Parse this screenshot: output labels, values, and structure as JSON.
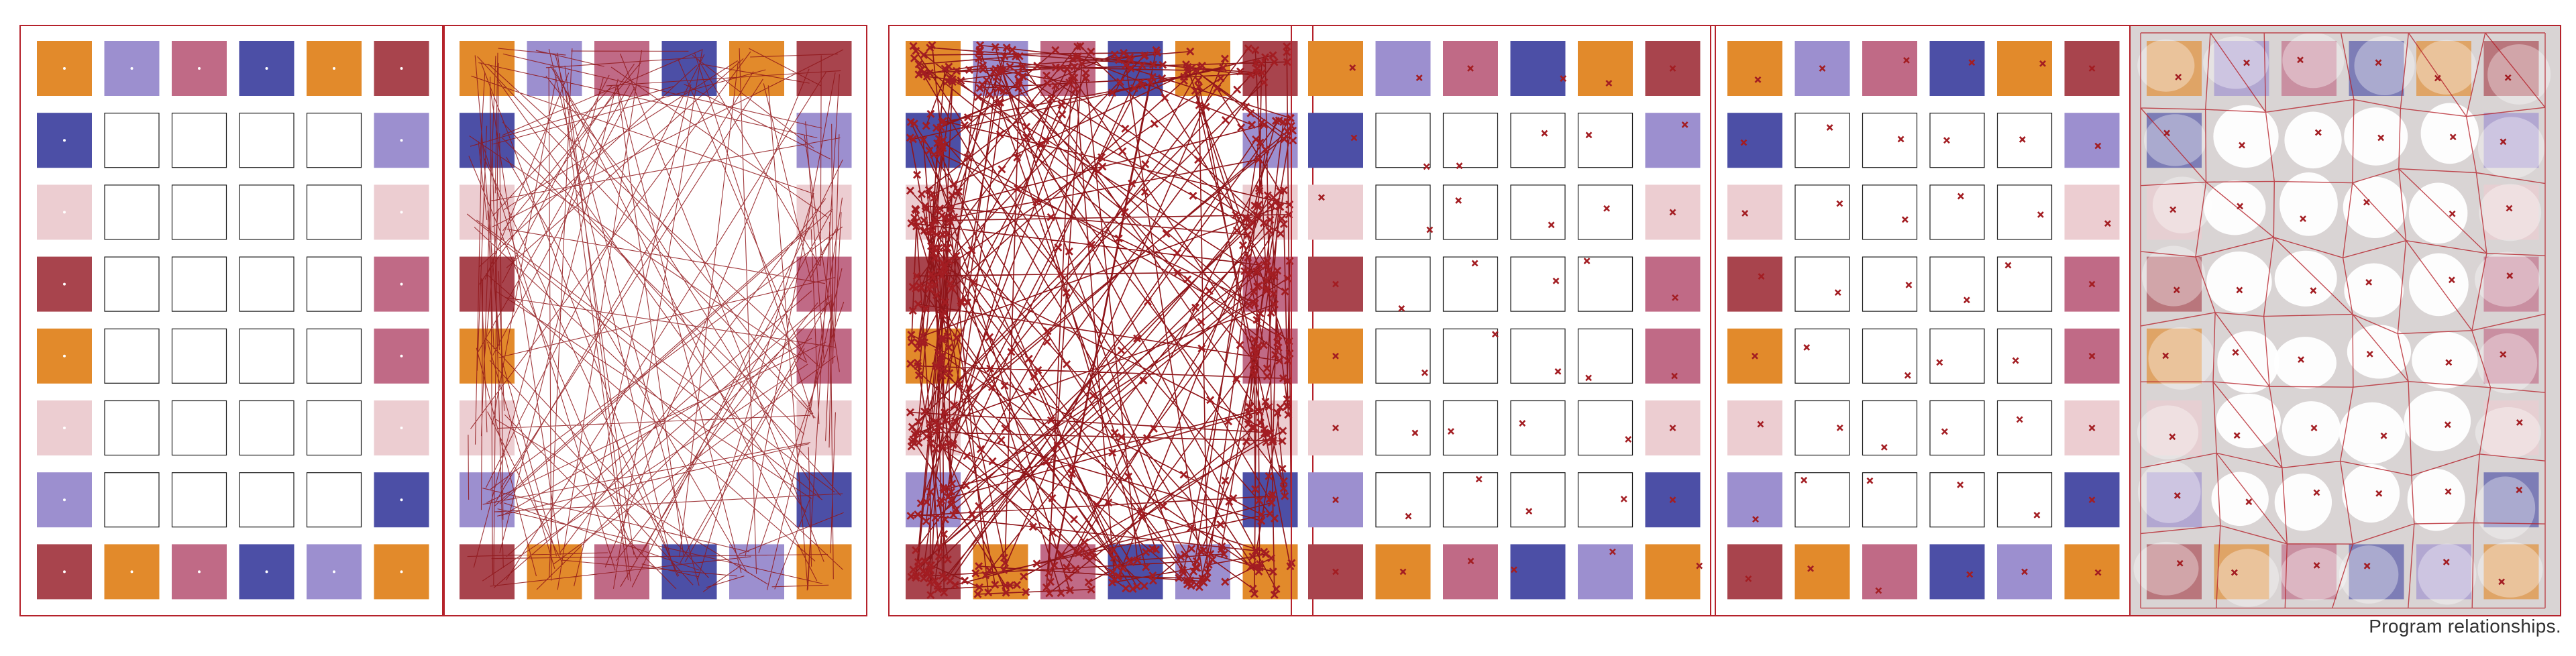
{
  "caption": "Program relationships.",
  "colors": {
    "orange": "#e28a2b",
    "lavender": "#9c8fcf",
    "mauve": "#c06a86",
    "navy": "#4c4fa6",
    "brick": "#a8444d",
    "blush": "#eccdd1",
    "frame": "#b5222b",
    "line": "#8f1519",
    "cross": "#a31d22",
    "cell_outline": "#1a1a1a",
    "voronoi_fill": "#d9d4d4"
  },
  "grid": {
    "rows": 8,
    "cols": 6,
    "program_colors": [
      [
        "orange",
        "lavender",
        "mauve",
        "navy",
        "orange",
        "brick"
      ],
      [
        "navy",
        null,
        null,
        null,
        null,
        "lavender"
      ],
      [
        "blush",
        null,
        null,
        null,
        null,
        "blush"
      ],
      [
        "brick",
        null,
        null,
        null,
        null,
        "mauve"
      ],
      [
        "orange",
        null,
        null,
        null,
        null,
        "mauve"
      ],
      [
        "blush",
        null,
        null,
        null,
        null,
        "blush"
      ],
      [
        "lavender",
        null,
        null,
        null,
        null,
        "navy"
      ],
      [
        "brick",
        "orange",
        "mauve",
        "navy",
        "lavender",
        "orange"
      ]
    ]
  },
  "panels": [
    {
      "id": "program-grid",
      "mode": "grid"
    },
    {
      "id": "relationship-web",
      "mode": "web"
    },
    {
      "id": "dense-crossing-field",
      "mode": "dense"
    },
    {
      "id": "scattered-markers",
      "mode": "scatter"
    },
    {
      "id": "relaxed-markers",
      "mode": "relax"
    },
    {
      "id": "voronoi-partition",
      "mode": "voronoi"
    }
  ]
}
